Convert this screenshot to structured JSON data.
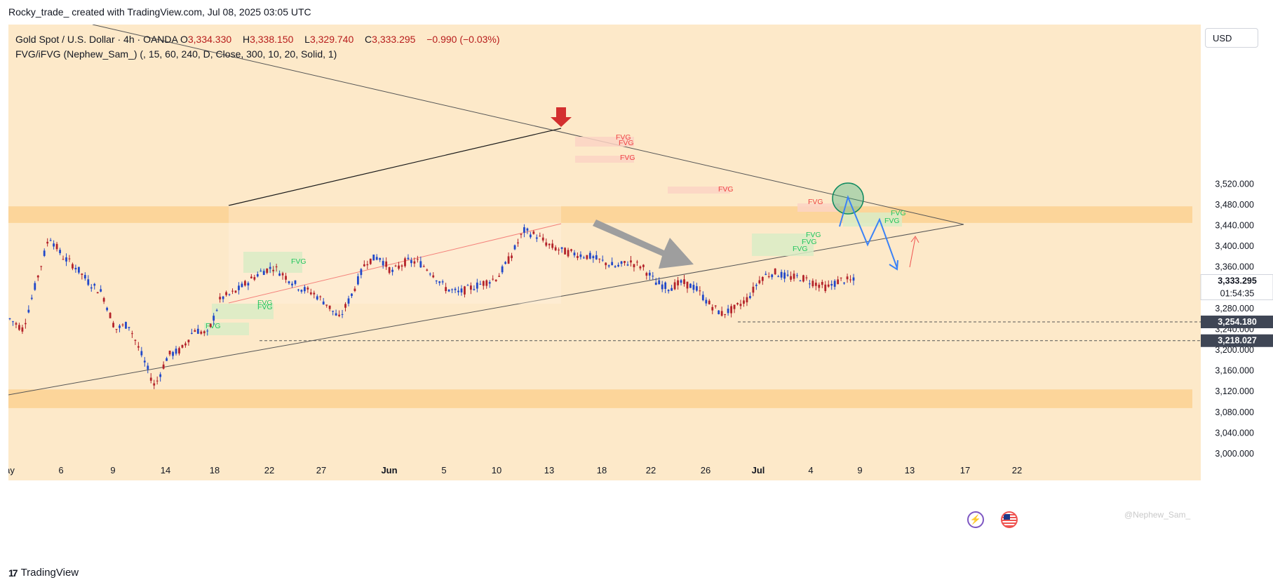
{
  "credit": "Rocky_trade_ created with TradingView.com, Jul 08, 2025 03:05 UTC",
  "header": {
    "symbol": "Gold Spot / U.S. Dollar · 4h · OANDA",
    "o_label": "O",
    "o_value": "3,334.330",
    "h_label": "H",
    "h_value": "3,338.150",
    "l_label": "L",
    "l_value": "3,329.740",
    "c_label": "C",
    "c_value": "3,333.295",
    "change": "−0.990 (−0.03%)",
    "indicator": "FVG/iFVG (Nephew_Sam_) (, 15, 60, 240, D, Close, 300, 10, 20, Solid, 1)"
  },
  "currency_button": "USD",
  "footer_brand": "TradingView",
  "footer_logo": "17",
  "watermark": "@Nephew_Sam_",
  "icons": {
    "bolt": "lightning-icon",
    "flag": "us-flag-icon"
  },
  "colors": {
    "background": "#fde9c9",
    "zone": "#fcd59a",
    "up": "#2148c9",
    "down": "#b4232a",
    "fvg_bull": "#d9ecc6",
    "fvg_bear": "#fbd3c4",
    "fvg_bull_text": "#22c55e",
    "fvg_bear_text": "#ef4444",
    "projection": "#3b82f6",
    "arrow_red": "#d32f2f",
    "circle": "#0f8a5f"
  },
  "chart_data": {
    "type": "candlestick",
    "interval": "4h",
    "x_ticks": [
      "ay",
      "6",
      "9",
      "14",
      "18",
      "22",
      "27",
      "Jun",
      "5",
      "10",
      "13",
      "18",
      "22",
      "26",
      "Jul",
      "4",
      "9",
      "13",
      "17",
      "22"
    ],
    "y_ticks": [
      "3,000.000",
      "3,040.000",
      "3,080.000",
      "3,120.000",
      "3,160.000",
      "3,200.000",
      "3,240.000",
      "3,280.000",
      "3,320.000",
      "3,360.000",
      "3,400.000",
      "3,440.000",
      "3,480.000",
      "3,520.000"
    ],
    "ylim": [
      3000,
      3560
    ],
    "price_badges": [
      {
        "label": "3,333.295",
        "sub": "01:54:35",
        "value": 3333.295
      },
      {
        "label": "3,254.180",
        "value": 3254.18
      },
      {
        "label": "3,218.027",
        "value": 3218.027
      }
    ],
    "path_points": [
      [
        "May 1",
        3260
      ],
      [
        "May 3",
        3240
      ],
      [
        "May 5",
        3330
      ],
      [
        "May 6",
        3420
      ],
      [
        "May 7",
        3380
      ],
      [
        "May 8",
        3360
      ],
      [
        "May 9",
        3330
      ],
      [
        "May 10",
        3310
      ],
      [
        "May 12",
        3240
      ],
      [
        "May 13",
        3250
      ],
      [
        "May 14",
        3190
      ],
      [
        "May 15",
        3130
      ],
      [
        "May 16",
        3190
      ],
      [
        "May 17",
        3200
      ],
      [
        "May 18",
        3240
      ],
      [
        "May 19",
        3230
      ],
      [
        "May 20",
        3300
      ],
      [
        "May 21",
        3310
      ],
      [
        "May 22",
        3330
      ],
      [
        "May 23",
        3350
      ],
      [
        "May 24",
        3360
      ],
      [
        "May 25",
        3340
      ],
      [
        "May 26",
        3320
      ],
      [
        "May 27",
        3310
      ],
      [
        "May 28",
        3290
      ],
      [
        "May 29",
        3260
      ],
      [
        "May 30",
        3310
      ],
      [
        "Jun 1",
        3370
      ],
      [
        "Jun 2",
        3380
      ],
      [
        "Jun 3",
        3350
      ],
      [
        "Jun 4",
        3370
      ],
      [
        "Jun 5",
        3370
      ],
      [
        "Jun 6",
        3350
      ],
      [
        "Jun 7",
        3320
      ],
      [
        "Jun 8",
        3310
      ],
      [
        "Jun 9",
        3320
      ],
      [
        "Jun 10",
        3330
      ],
      [
        "Jun 11",
        3340
      ],
      [
        "Jun 12",
        3380
      ],
      [
        "Jun 13",
        3430
      ],
      [
        "Jun 14",
        3420
      ],
      [
        "Jun 15",
        3400
      ],
      [
        "Jun 16",
        3390
      ],
      [
        "Jun 17",
        3385
      ],
      [
        "Jun 18",
        3380
      ],
      [
        "Jun 19",
        3370
      ],
      [
        "Jun 20",
        3360
      ],
      [
        "Jun 21",
        3370
      ],
      [
        "Jun 22",
        3360
      ],
      [
        "Jun 23",
        3330
      ],
      [
        "Jun 24",
        3320
      ],
      [
        "Jun 25",
        3330
      ],
      [
        "Jun 26",
        3320
      ],
      [
        "Jun 27",
        3290
      ],
      [
        "Jun 28",
        3270
      ],
      [
        "Jun 29",
        3280
      ],
      [
        "Jun 30",
        3300
      ],
      [
        "Jul 1",
        3340
      ],
      [
        "Jul 2",
        3350
      ],
      [
        "Jul 3",
        3340
      ],
      [
        "Jul 4",
        3340
      ],
      [
        "Jul 5",
        3330
      ],
      [
        "Jul 6",
        3320
      ],
      [
        "Jul 7",
        3335
      ],
      [
        "Jul 8",
        3333
      ]
    ],
    "zones": [
      {
        "from": 3445,
        "to": 3477
      },
      {
        "from": 3088,
        "to": 3124
      }
    ],
    "fvg_labels": [
      {
        "text": "FVG",
        "kind": "bull"
      },
      {
        "text": "FVG",
        "kind": "bull"
      },
      {
        "text": "FVG",
        "kind": "bull"
      },
      {
        "text": "FVG",
        "kind": "bull"
      },
      {
        "text": "FVG",
        "kind": "bear"
      },
      {
        "text": "FVG",
        "kind": "bear"
      },
      {
        "text": "FVG",
        "kind": "bear"
      },
      {
        "text": "FVG",
        "kind": "bear"
      },
      {
        "text": "FVG",
        "kind": "bear"
      },
      {
        "text": "FVG",
        "kind": "bull"
      },
      {
        "text": "FVG",
        "kind": "bull"
      },
      {
        "text": "FVG",
        "kind": "bull"
      },
      {
        "text": "FVG",
        "kind": "bull"
      },
      {
        "text": "FVG",
        "kind": "bull"
      }
    ]
  }
}
